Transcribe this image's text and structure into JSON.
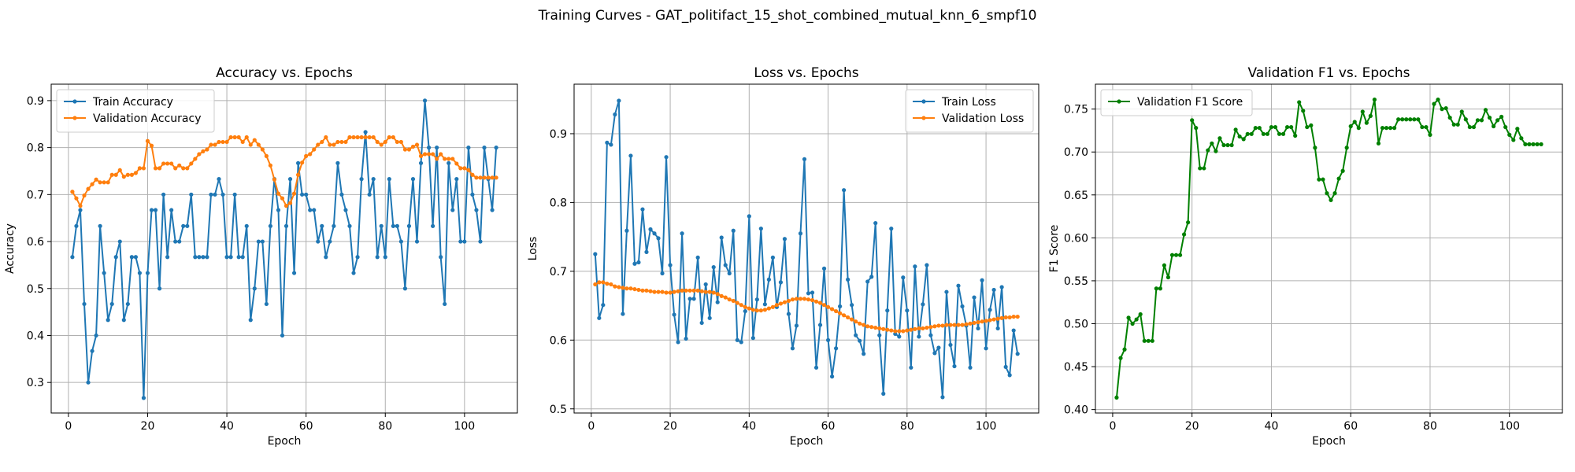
{
  "suptitle": "Training Curves - GAT_politifact_15_shot_combined_mutual_knn_6_smpf10",
  "colors": {
    "train": "#1f77b4",
    "validation": "#ff7f0e",
    "f1": "#008000"
  },
  "chart_data": [
    {
      "type": "line",
      "title": "Accuracy vs. Epochs",
      "xlabel": "Epoch",
      "ylabel": "Accuracy",
      "xlim": [
        -4.35,
        113.35
      ],
      "ylim": [
        0.235,
        0.935
      ],
      "xticks": [
        0,
        20,
        40,
        60,
        80,
        100
      ],
      "yticks": [
        0.3,
        0.4,
        0.5,
        0.6,
        0.7,
        0.8,
        0.9
      ],
      "ytick_labels": [
        "0.3",
        "0.4",
        "0.5",
        "0.6",
        "0.7",
        "0.8",
        "0.9"
      ],
      "grid": true,
      "legend_position": "top-left",
      "series": [
        {
          "name": "Train Accuracy",
          "color": "#1f77b4",
          "x_start": 1,
          "values": [
            0.567,
            0.633,
            0.667,
            0.467,
            0.3,
            0.367,
            0.4,
            0.633,
            0.533,
            0.433,
            0.467,
            0.567,
            0.6,
            0.433,
            0.467,
            0.567,
            0.567,
            0.533,
            0.267,
            0.533,
            0.667,
            0.667,
            0.5,
            0.7,
            0.567,
            0.667,
            0.6,
            0.6,
            0.633,
            0.633,
            0.7,
            0.567,
            0.567,
            0.567,
            0.567,
            0.7,
            0.7,
            0.733,
            0.7,
            0.567,
            0.567,
            0.7,
            0.567,
            0.567,
            0.633,
            0.433,
            0.5,
            0.6,
            0.6,
            0.467,
            0.633,
            0.733,
            0.667,
            0.4,
            0.633,
            0.733,
            0.533,
            0.767,
            0.7,
            0.7,
            0.667,
            0.667,
            0.6,
            0.633,
            0.567,
            0.6,
            0.633,
            0.767,
            0.7,
            0.667,
            0.633,
            0.533,
            0.567,
            0.733,
            0.833,
            0.7,
            0.733,
            0.567,
            0.633,
            0.567,
            0.733,
            0.633,
            0.633,
            0.6,
            0.5,
            0.633,
            0.733,
            0.6,
            0.767,
            0.9,
            0.8,
            0.633,
            0.8,
            0.567,
            0.467,
            0.767,
            0.667,
            0.733,
            0.6,
            0.6,
            0.8,
            0.7,
            0.667,
            0.6,
            0.8,
            0.733,
            0.667,
            0.8
          ]
        },
        {
          "name": "Validation Accuracy",
          "color": "#ff7f0e",
          "x_start": 1,
          "values": [
            0.706,
            0.692,
            0.676,
            0.698,
            0.712,
            0.722,
            0.732,
            0.726,
            0.726,
            0.726,
            0.742,
            0.742,
            0.752,
            0.738,
            0.742,
            0.742,
            0.746,
            0.756,
            0.756,
            0.814,
            0.804,
            0.756,
            0.756,
            0.766,
            0.766,
            0.766,
            0.756,
            0.762,
            0.756,
            0.756,
            0.766,
            0.776,
            0.786,
            0.792,
            0.796,
            0.806,
            0.806,
            0.812,
            0.812,
            0.812,
            0.822,
            0.822,
            0.822,
            0.812,
            0.822,
            0.806,
            0.816,
            0.806,
            0.796,
            0.782,
            0.762,
            0.732,
            0.702,
            0.692,
            0.676,
            0.682,
            0.702,
            0.742,
            0.768,
            0.782,
            0.786,
            0.796,
            0.806,
            0.812,
            0.822,
            0.806,
            0.806,
            0.812,
            0.812,
            0.812,
            0.822,
            0.822,
            0.822,
            0.822,
            0.822,
            0.822,
            0.822,
            0.812,
            0.806,
            0.812,
            0.822,
            0.822,
            0.812,
            0.812,
            0.796,
            0.796,
            0.802,
            0.806,
            0.782,
            0.786,
            0.786,
            0.786,
            0.776,
            0.786,
            0.776,
            0.776,
            0.776,
            0.766,
            0.756,
            0.756,
            0.752,
            0.742,
            0.736,
            0.736,
            0.736,
            0.736,
            0.736,
            0.736
          ]
        }
      ]
    },
    {
      "type": "line",
      "title": "Loss vs. Epochs",
      "xlabel": "Epoch",
      "ylabel": "Loss",
      "xlim": [
        -4.35,
        113.35
      ],
      "ylim": [
        0.494,
        0.972
      ],
      "xticks": [
        0,
        20,
        40,
        60,
        80,
        100
      ],
      "yticks": [
        0.5,
        0.6,
        0.7,
        0.8,
        0.9
      ],
      "ytick_labels": [
        "0.5",
        "0.6",
        "0.7",
        "0.8",
        "0.9"
      ],
      "grid": true,
      "legend_position": "top-right",
      "series": [
        {
          "name": "Train Loss",
          "color": "#1f77b4",
          "x_start": 1,
          "values": [
            0.725,
            0.632,
            0.651,
            0.887,
            0.884,
            0.928,
            0.948,
            0.638,
            0.759,
            0.868,
            0.711,
            0.713,
            0.79,
            0.728,
            0.761,
            0.755,
            0.748,
            0.697,
            0.866,
            0.709,
            0.637,
            0.597,
            0.755,
            0.602,
            0.66,
            0.66,
            0.72,
            0.625,
            0.681,
            0.632,
            0.706,
            0.655,
            0.749,
            0.709,
            0.697,
            0.759,
            0.6,
            0.597,
            0.642,
            0.78,
            0.603,
            0.659,
            0.762,
            0.652,
            0.688,
            0.72,
            0.648,
            0.684,
            0.747,
            0.638,
            0.588,
            0.621,
            0.755,
            0.863,
            0.668,
            0.669,
            0.56,
            0.622,
            0.704,
            0.6,
            0.547,
            0.588,
            0.649,
            0.818,
            0.688,
            0.651,
            0.607,
            0.599,
            0.58,
            0.685,
            0.692,
            0.77,
            0.607,
            0.522,
            0.643,
            0.762,
            0.609,
            0.605,
            0.691,
            0.643,
            0.56,
            0.707,
            0.605,
            0.652,
            0.709,
            0.607,
            0.581,
            0.589,
            0.517,
            0.67,
            0.593,
            0.562,
            0.679,
            0.649,
            0.621,
            0.56,
            0.662,
            0.617,
            0.687,
            0.588,
            0.644,
            0.673,
            0.617,
            0.677,
            0.561,
            0.549,
            0.614,
            0.58
          ]
        },
        {
          "name": "Validation Loss",
          "color": "#ff7f0e",
          "x_start": 1,
          "values": [
            0.681,
            0.684,
            0.684,
            0.682,
            0.681,
            0.678,
            0.677,
            0.676,
            0.675,
            0.675,
            0.674,
            0.673,
            0.672,
            0.672,
            0.671,
            0.67,
            0.67,
            0.67,
            0.669,
            0.669,
            0.67,
            0.671,
            0.672,
            0.672,
            0.672,
            0.672,
            0.672,
            0.671,
            0.67,
            0.67,
            0.669,
            0.667,
            0.664,
            0.662,
            0.659,
            0.657,
            0.654,
            0.651,
            0.648,
            0.646,
            0.644,
            0.643,
            0.643,
            0.644,
            0.646,
            0.648,
            0.651,
            0.653,
            0.655,
            0.657,
            0.659,
            0.66,
            0.66,
            0.66,
            0.659,
            0.658,
            0.656,
            0.654,
            0.651,
            0.648,
            0.645,
            0.642,
            0.639,
            0.636,
            0.633,
            0.63,
            0.627,
            0.624,
            0.622,
            0.62,
            0.619,
            0.618,
            0.617,
            0.616,
            0.615,
            0.614,
            0.613,
            0.613,
            0.613,
            0.614,
            0.615,
            0.616,
            0.617,
            0.617,
            0.618,
            0.619,
            0.62,
            0.621,
            0.621,
            0.622,
            0.622,
            0.622,
            0.622,
            0.622,
            0.623,
            0.624,
            0.625,
            0.626,
            0.627,
            0.628,
            0.629,
            0.63,
            0.631,
            0.632,
            0.633,
            0.633,
            0.634,
            0.634
          ]
        }
      ]
    },
    {
      "type": "line",
      "title": "Validation F1 vs. Epochs",
      "xlabel": "Epoch",
      "ylabel": "F1 Score",
      "xlim": [
        -4.35,
        113.35
      ],
      "ylim": [
        0.396,
        0.779
      ],
      "xticks": [
        0,
        20,
        40,
        60,
        80,
        100
      ],
      "yticks": [
        0.4,
        0.45,
        0.5,
        0.55,
        0.6,
        0.65,
        0.7,
        0.75
      ],
      "ytick_labels": [
        "0.40",
        "0.45",
        "0.50",
        "0.55",
        "0.60",
        "0.65",
        "0.70",
        "0.75"
      ],
      "grid": true,
      "legend_position": "top-left",
      "series": [
        {
          "name": "Validation F1 Score",
          "color": "#008000",
          "x_start": 1,
          "values": [
            0.414,
            0.46,
            0.47,
            0.507,
            0.5,
            0.505,
            0.511,
            0.48,
            0.48,
            0.48,
            0.541,
            0.541,
            0.568,
            0.554,
            0.58,
            0.58,
            0.58,
            0.604,
            0.618,
            0.737,
            0.728,
            0.681,
            0.681,
            0.702,
            0.71,
            0.701,
            0.716,
            0.708,
            0.708,
            0.708,
            0.726,
            0.718,
            0.715,
            0.721,
            0.721,
            0.728,
            0.728,
            0.721,
            0.721,
            0.729,
            0.729,
            0.721,
            0.721,
            0.729,
            0.729,
            0.719,
            0.758,
            0.748,
            0.729,
            0.731,
            0.705,
            0.668,
            0.668,
            0.652,
            0.644,
            0.652,
            0.669,
            0.678,
            0.705,
            0.73,
            0.735,
            0.728,
            0.747,
            0.734,
            0.742,
            0.761,
            0.71,
            0.728,
            0.728,
            0.728,
            0.728,
            0.738,
            0.738,
            0.738,
            0.738,
            0.738,
            0.738,
            0.729,
            0.729,
            0.72,
            0.756,
            0.761,
            0.75,
            0.751,
            0.74,
            0.732,
            0.732,
            0.747,
            0.738,
            0.729,
            0.729,
            0.737,
            0.737,
            0.749,
            0.74,
            0.73,
            0.737,
            0.741,
            0.729,
            0.72,
            0.714,
            0.727,
            0.716,
            0.709,
            0.709,
            0.709,
            0.709,
            0.709
          ]
        }
      ]
    }
  ]
}
